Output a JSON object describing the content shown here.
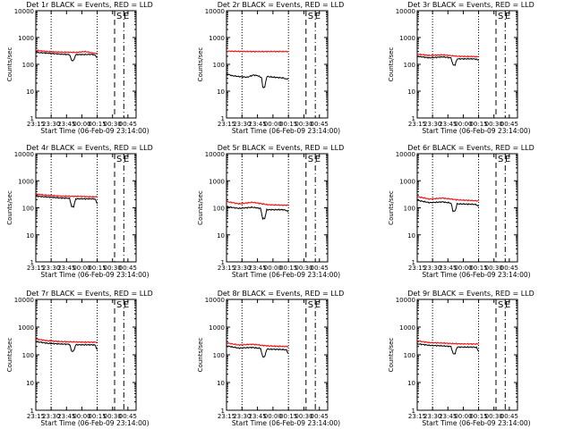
{
  "shared": {
    "ylabel": "Counts/sec",
    "xlabel": "Start Time (06-Feb-09 23:14:00)",
    "x_ticks": [
      "23:15",
      "23:30",
      "23:45",
      "00:00",
      "00:15",
      "00:30",
      "00:45"
    ],
    "y_ticks": [
      "1",
      "10",
      "100",
      "1000",
      "10000"
    ],
    "markers": [
      "S",
      "E"
    ],
    "colors": {
      "events": "#000000",
      "lld": "#ff0000"
    }
  },
  "chart_data": [
    {
      "type": "line",
      "title": "Det 1r BLACK = Events, RED = LLD",
      "xlabel": "Start Time (06-Feb-09 23:14:00)",
      "ylabel": "Counts/sec",
      "yscale": "log",
      "ylim": [
        1,
        10000
      ],
      "x_ticks": [
        "23:15",
        "23:30",
        "23:45",
        "00:00",
        "00:15",
        "00:30",
        "00:45"
      ],
      "series": [
        {
          "name": "Events",
          "color": "#000000",
          "points": [
            [
              0,
              280
            ],
            [
              12,
              260
            ],
            [
              25,
              240
            ],
            [
              33,
              230
            ],
            [
              35,
              140
            ],
            [
              37,
              140
            ],
            [
              39,
              230
            ],
            [
              55,
              235
            ],
            [
              58,
              220
            ],
            [
              60,
              175
            ]
          ]
        },
        {
          "name": "LLD",
          "color": "#ff0000",
          "points": [
            [
              0,
              330
            ],
            [
              12,
              300
            ],
            [
              25,
              285
            ],
            [
              40,
              280
            ],
            [
              48,
              300
            ],
            [
              55,
              270
            ],
            [
              58,
              255
            ],
            [
              60,
              265
            ]
          ]
        }
      ]
    },
    {
      "type": "line",
      "title": "Det 2r BLACK = Events, RED = LLD",
      "xlabel": "Start Time (06-Feb-09 23:14:00)",
      "ylabel": "Counts/sec",
      "yscale": "log",
      "ylim": [
        1,
        10000
      ],
      "x_ticks": [
        "23:15",
        "23:30",
        "23:45",
        "00:00",
        "00:15",
        "00:30",
        "00:45"
      ],
      "series": [
        {
          "name": "Events",
          "color": "#000000",
          "points": [
            [
              0,
              45
            ],
            [
              5,
              38
            ],
            [
              12,
              35
            ],
            [
              20,
              33
            ],
            [
              26,
              40
            ],
            [
              30,
              38
            ],
            [
              34,
              32
            ],
            [
              35,
              14
            ],
            [
              37,
              14
            ],
            [
              39,
              35
            ],
            [
              55,
              31
            ],
            [
              58,
              28
            ],
            [
              60,
              30
            ]
          ]
        },
        {
          "name": "LLD",
          "color": "#ff0000",
          "points": [
            [
              0,
              310
            ],
            [
              20,
              300
            ],
            [
              40,
              300
            ],
            [
              60,
              300
            ]
          ]
        }
      ]
    },
    {
      "type": "line",
      "title": "Det 3r BLACK = Events, RED = LLD",
      "xlabel": "Start Time (06-Feb-09 23:14:00)",
      "ylabel": "Counts/sec",
      "yscale": "log",
      "ylim": [
        1,
        10000
      ],
      "x_ticks": [
        "23:15",
        "23:30",
        "23:45",
        "00:00",
        "00:15",
        "00:30",
        "00:45"
      ],
      "series": [
        {
          "name": "Events",
          "color": "#000000",
          "points": [
            [
              0,
              200
            ],
            [
              12,
              175
            ],
            [
              25,
              190
            ],
            [
              33,
              175
            ],
            [
              35,
              95
            ],
            [
              37,
              95
            ],
            [
              39,
              160
            ],
            [
              55,
              160
            ],
            [
              58,
              155
            ],
            [
              60,
              140
            ]
          ]
        },
        {
          "name": "LLD",
          "color": "#ff0000",
          "points": [
            [
              0,
              240
            ],
            [
              12,
              215
            ],
            [
              25,
              225
            ],
            [
              40,
              200
            ],
            [
              55,
              195
            ],
            [
              60,
              190
            ]
          ]
        }
      ]
    },
    {
      "type": "line",
      "title": "Det 4r BLACK = Events, RED = LLD",
      "xlabel": "Start Time (06-Feb-09 23:14:00)",
      "ylabel": "Counts/sec",
      "yscale": "log",
      "ylim": [
        1,
        10000
      ],
      "x_ticks": [
        "23:15",
        "23:30",
        "23:45",
        "00:00",
        "00:15",
        "00:30",
        "00:45"
      ],
      "series": [
        {
          "name": "Events",
          "color": "#000000",
          "points": [
            [
              0,
              270
            ],
            [
              12,
              250
            ],
            [
              25,
              230
            ],
            [
              33,
              225
            ],
            [
              35,
              110
            ],
            [
              37,
              110
            ],
            [
              39,
              215
            ],
            [
              55,
              215
            ],
            [
              58,
              210
            ],
            [
              60,
              140
            ]
          ]
        },
        {
          "name": "LLD",
          "color": "#ff0000",
          "points": [
            [
              0,
              320
            ],
            [
              12,
              290
            ],
            [
              25,
              270
            ],
            [
              40,
              265
            ],
            [
              55,
              255
            ],
            [
              60,
              255
            ]
          ]
        }
      ]
    },
    {
      "type": "line",
      "title": "Det 5r BLACK = Events, RED = LLD",
      "xlabel": "Start Time (06-Feb-09 23:14:00)",
      "ylabel": "Counts/sec",
      "yscale": "log",
      "ylim": [
        1,
        10000
      ],
      "x_ticks": [
        "23:15",
        "23:30",
        "23:45",
        "00:00",
        "00:15",
        "00:30",
        "00:45"
      ],
      "series": [
        {
          "name": "Events",
          "color": "#000000",
          "points": [
            [
              0,
              110
            ],
            [
              12,
              95
            ],
            [
              25,
              105
            ],
            [
              33,
              95
            ],
            [
              35,
              40
            ],
            [
              37,
              40
            ],
            [
              39,
              85
            ],
            [
              55,
              85
            ],
            [
              58,
              80
            ],
            [
              60,
              70
            ]
          ]
        },
        {
          "name": "LLD",
          "color": "#ff0000",
          "points": [
            [
              0,
              170
            ],
            [
              12,
              140
            ],
            [
              25,
              160
            ],
            [
              40,
              130
            ],
            [
              55,
              125
            ],
            [
              60,
              125
            ]
          ]
        }
      ]
    },
    {
      "type": "line",
      "title": "Det 6r BLACK = Events, RED = LLD",
      "xlabel": "Start Time (06-Feb-09 23:14:00)",
      "ylabel": "Counts/sec",
      "yscale": "log",
      "ylim": [
        1,
        10000
      ],
      "x_ticks": [
        "23:15",
        "23:30",
        "23:45",
        "00:00",
        "00:15",
        "00:30",
        "00:45"
      ],
      "series": [
        {
          "name": "Events",
          "color": "#000000",
          "points": [
            [
              0,
              190
            ],
            [
              12,
              155
            ],
            [
              25,
              165
            ],
            [
              33,
              150
            ],
            [
              35,
              75
            ],
            [
              37,
              75
            ],
            [
              39,
              140
            ],
            [
              55,
              135
            ],
            [
              58,
              130
            ],
            [
              60,
              110
            ]
          ]
        },
        {
          "name": "LLD",
          "color": "#ff0000",
          "points": [
            [
              0,
              260
            ],
            [
              12,
              210
            ],
            [
              25,
              230
            ],
            [
              40,
              195
            ],
            [
              55,
              185
            ],
            [
              60,
              180
            ]
          ]
        }
      ]
    },
    {
      "type": "line",
      "title": "Det 7r BLACK = Events, RED = LLD",
      "xlabel": "Start Time (06-Feb-09 23:14:00)",
      "ylabel": "Counts/sec",
      "yscale": "log",
      "ylim": [
        1,
        10000
      ],
      "x_ticks": [
        "23:15",
        "23:30",
        "23:45",
        "00:00",
        "00:15",
        "00:30",
        "00:45"
      ],
      "series": [
        {
          "name": "Events",
          "color": "#000000",
          "points": [
            [
              0,
              300
            ],
            [
              12,
              260
            ],
            [
              25,
              245
            ],
            [
              33,
              240
            ],
            [
              35,
              135
            ],
            [
              37,
              135
            ],
            [
              39,
              230
            ],
            [
              55,
              230
            ],
            [
              58,
              225
            ],
            [
              60,
              150
            ]
          ]
        },
        {
          "name": "LLD",
          "color": "#ff0000",
          "points": [
            [
              0,
              370
            ],
            [
              12,
              320
            ],
            [
              25,
              300
            ],
            [
              40,
              290
            ],
            [
              55,
              285
            ],
            [
              60,
              285
            ]
          ]
        }
      ]
    },
    {
      "type": "line",
      "title": "Det 8r BLACK = Events, RED = LLD",
      "xlabel": "Start Time (06-Feb-09 23:14:00)",
      "ylabel": "Counts/sec",
      "yscale": "log",
      "ylim": [
        1,
        10000
      ],
      "x_ticks": [
        "23:15",
        "23:30",
        "23:45",
        "00:00",
        "00:15",
        "00:30",
        "00:45"
      ],
      "series": [
        {
          "name": "Events",
          "color": "#000000",
          "points": [
            [
              0,
              210
            ],
            [
              12,
              175
            ],
            [
              25,
              185
            ],
            [
              33,
              170
            ],
            [
              35,
              85
            ],
            [
              37,
              85
            ],
            [
              39,
              160
            ],
            [
              55,
              155
            ],
            [
              58,
              150
            ],
            [
              60,
              110
            ]
          ]
        },
        {
          "name": "LLD",
          "color": "#ff0000",
          "points": [
            [
              0,
              270
            ],
            [
              12,
              225
            ],
            [
              25,
              240
            ],
            [
              40,
              210
            ],
            [
              55,
              200
            ],
            [
              60,
              200
            ]
          ]
        }
      ]
    },
    {
      "type": "line",
      "title": "Det 9r BLACK = Events, RED = LLD",
      "xlabel": "Start Time (06-Feb-09 23:14:00)",
      "ylabel": "Counts/sec",
      "yscale": "log",
      "ylim": [
        1,
        10000
      ],
      "x_ticks": [
        "23:15",
        "23:30",
        "23:45",
        "00:00",
        "00:15",
        "00:30",
        "00:45"
      ],
      "series": [
        {
          "name": "Events",
          "color": "#000000",
          "points": [
            [
              0,
              250
            ],
            [
              12,
              220
            ],
            [
              25,
              210
            ],
            [
              33,
              200
            ],
            [
              35,
              110
            ],
            [
              37,
              110
            ],
            [
              39,
              190
            ],
            [
              55,
              190
            ],
            [
              58,
              185
            ],
            [
              60,
              130
            ]
          ]
        },
        {
          "name": "LLD",
          "color": "#ff0000",
          "points": [
            [
              0,
              320
            ],
            [
              12,
              275
            ],
            [
              25,
              265
            ],
            [
              40,
              250
            ],
            [
              55,
              245
            ],
            [
              60,
              245
            ]
          ]
        }
      ]
    }
  ]
}
